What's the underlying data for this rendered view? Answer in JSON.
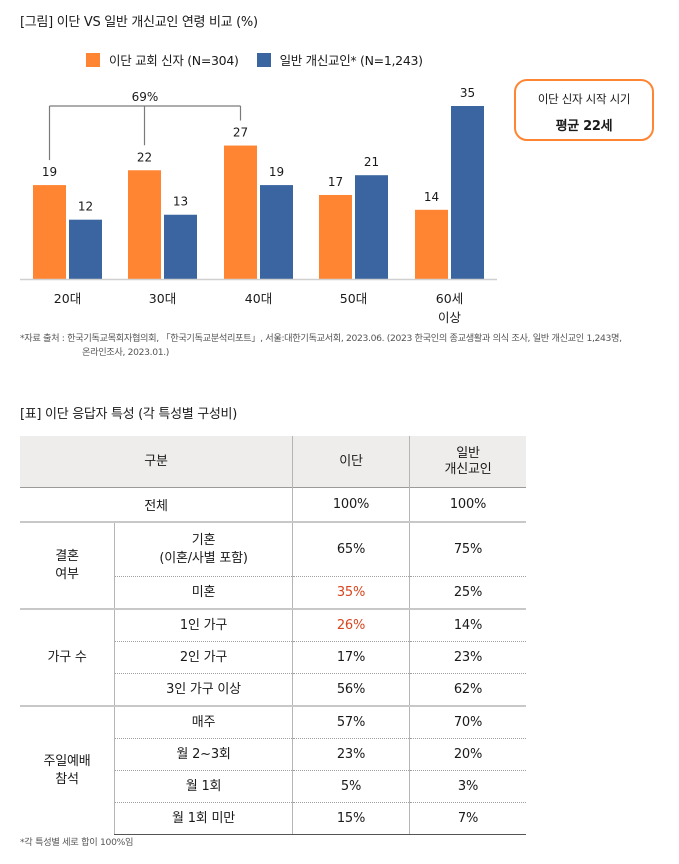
{
  "figure": {
    "title": "[그림] 이단 VS 일반 개신교인 연령 비교 (%)",
    "bracket_label": "69%",
    "callout": {
      "line1": "이단 신자 시작 시기",
      "line2": "평균 22세"
    },
    "source_label": "*자료 출처 :",
    "source_line1": "한국기독교목회자협의회, 「한국기독교분석리포트」, 서울:대한기독교서회, 2023.06. (2023 한국인의 종교생활과 의식 조사, 일반 개신교인 1,243명,",
    "source_line2": "온라인조사, 2023.01.)"
  },
  "chart_data": {
    "type": "bar",
    "title": "[그림] 이단 VS 일반 개신교인 연령 비교 (%)",
    "categories": [
      "20대",
      "30대",
      "40대",
      "50대",
      "60세\n이상"
    ],
    "category_lines": [
      [
        "20대"
      ],
      [
        "30대"
      ],
      [
        "40대"
      ],
      [
        "50대"
      ],
      [
        "60세",
        "이상"
      ]
    ],
    "series": [
      {
        "name": "이단 교회 신자 (N=304)",
        "color": "#ff8533",
        "values": [
          19,
          22,
          27,
          17,
          14
        ]
      },
      {
        "name": "일반 개신교인* (N=1,243)",
        "color": "#3a65a0",
        "values": [
          12,
          13,
          19,
          21,
          35
        ]
      }
    ],
    "xlabel": "",
    "ylabel": "",
    "ylim": [
      0,
      35
    ],
    "grid": false,
    "legend": "top",
    "annotations": [
      {
        "text": "69%",
        "spans": [
          "20대",
          "30대",
          "40대"
        ],
        "series": "이단 교회 신자 (N=304)"
      }
    ]
  },
  "table": {
    "title": "[표] 이단 응답자 특성 (각 특성별 구성비)",
    "headers": {
      "category": "구분",
      "col1": "이단",
      "col2_line1": "일반",
      "col2_line2": "개신교인"
    },
    "total": {
      "label": "전체",
      "col1": "100%",
      "col2": "100%"
    },
    "groups": [
      {
        "label_line1": "결혼",
        "label_line2": "여부",
        "rows": [
          {
            "label_line1": "기혼",
            "label_line2": "(이혼/사별 포함)",
            "col1": "65%",
            "col2": "75%",
            "highlight": false
          },
          {
            "label_line1": "미혼",
            "label_line2": "",
            "col1": "35%",
            "col2": "25%",
            "highlight": true
          }
        ]
      },
      {
        "label_line1": "가구 수",
        "label_line2": "",
        "rows": [
          {
            "label_line1": "1인 가구",
            "label_line2": "",
            "col1": "26%",
            "col2": "14%",
            "highlight": true
          },
          {
            "label_line1": "2인 가구",
            "label_line2": "",
            "col1": "17%",
            "col2": "23%",
            "highlight": false
          },
          {
            "label_line1": "3인 가구 이상",
            "label_line2": "",
            "col1": "56%",
            "col2": "62%",
            "highlight": false
          }
        ]
      },
      {
        "label_line1": "주일예배",
        "label_line2": "참석",
        "rows": [
          {
            "label_line1": "매주",
            "label_line2": "",
            "col1": "57%",
            "col2": "70%",
            "highlight": false
          },
          {
            "label_line1": "월 2~3회",
            "label_line2": "",
            "col1": "23%",
            "col2": "20%",
            "highlight": false
          },
          {
            "label_line1": "월 1회",
            "label_line2": "",
            "col1": "5%",
            "col2": "3%",
            "highlight": false
          },
          {
            "label_line1": "월 1회 미만",
            "label_line2": "",
            "col1": "15%",
            "col2": "7%",
            "highlight": false
          }
        ]
      }
    ],
    "note": "*각 특성별 세로 합이 100%임",
    "highlight_color": "#d9451f"
  }
}
